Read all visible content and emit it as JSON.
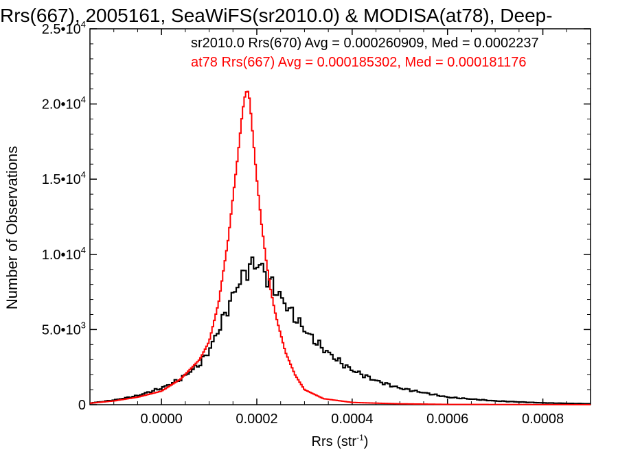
{
  "chart_data": {
    "type": "line",
    "title": "Rrs(667), 2005161, SeaWiFS(sr2010.0) & MODISA(at78), Deep-",
    "xlabel": "Rrs (str",
    "xlabel_sup": "-1",
    "xlabel_suffix": ")",
    "ylabel": "Number of Observations",
    "xlim": [
      -0.00015,
      0.0009
    ],
    "ylim": [
      0,
      25000
    ],
    "x_ticks": [
      0.0,
      0.0002,
      0.0004,
      0.0006,
      0.0008
    ],
    "x_tick_labels": [
      "0.0000",
      "0.0002",
      "0.0004",
      "0.0006",
      "0.0008"
    ],
    "y_ticks": [
      0,
      5000,
      10000,
      15000,
      20000,
      25000
    ],
    "y_tick_labels": [
      {
        "base": "0",
        "exp": ""
      },
      {
        "base": "5.0•10",
        "exp": "3"
      },
      {
        "base": "1.0•10",
        "exp": "4"
      },
      {
        "base": "1.5•10",
        "exp": "4"
      },
      {
        "base": "2.0•10",
        "exp": "4"
      },
      {
        "base": "2.5•10",
        "exp": "4"
      }
    ],
    "grid": false,
    "annotations": [
      {
        "text": "sr2010.0 Rrs(670) Avg = 0.000260909, Med = 0.0002237",
        "color": "#000000"
      },
      {
        "text": "at78 Rrs(667) Avg = 0.000185302, Med = 0.000181176",
        "color": "#ff0000"
      }
    ],
    "series": [
      {
        "name": "sr2010.0 Rrs(670)",
        "color": "#000000",
        "step": true,
        "x": [
          -0.00015,
          -0.0001,
          -5e-05,
          0.0,
          4e-05,
          8e-05,
          0.0001,
          0.00012,
          0.00014,
          0.00016,
          0.00018,
          0.000195,
          0.00021,
          0.00022,
          0.00024,
          0.00026,
          0.00028,
          0.0003,
          0.00032,
          0.00034,
          0.00036,
          0.00038,
          0.0004,
          0.00045,
          0.0005,
          0.0006,
          0.0007,
          0.0008,
          0.0009
        ],
        "y": [
          100,
          300,
          600,
          1100,
          1700,
          2700,
          3600,
          5000,
          6500,
          8000,
          9000,
          9400,
          9200,
          8500,
          7600,
          6700,
          5800,
          5000,
          4300,
          3700,
          3200,
          2700,
          2300,
          1600,
          1100,
          500,
          250,
          120,
          60
        ]
      },
      {
        "name": "at78 Rrs(667)",
        "color": "#ff0000",
        "step": true,
        "x": [
          -0.00015,
          -0.0001,
          -5e-05,
          0.0,
          4e-05,
          8e-05,
          0.0001,
          0.00012,
          0.00014,
          0.00015,
          0.00016,
          0.00017,
          0.000175,
          0.00018,
          0.000185,
          0.00019,
          0.0002,
          0.00021,
          0.00022,
          0.00023,
          0.00024,
          0.00026,
          0.00028,
          0.0003,
          0.00034,
          0.0004,
          0.0005,
          0.0006,
          0.0009
        ],
        "y": [
          100,
          250,
          500,
          900,
          1700,
          3000,
          4200,
          6800,
          11000,
          13800,
          16500,
          19500,
          20500,
          21000,
          20300,
          18500,
          15000,
          12000,
          9500,
          7500,
          5900,
          3500,
          2000,
          1000,
          400,
          150,
          60,
          20,
          0
        ]
      }
    ]
  }
}
